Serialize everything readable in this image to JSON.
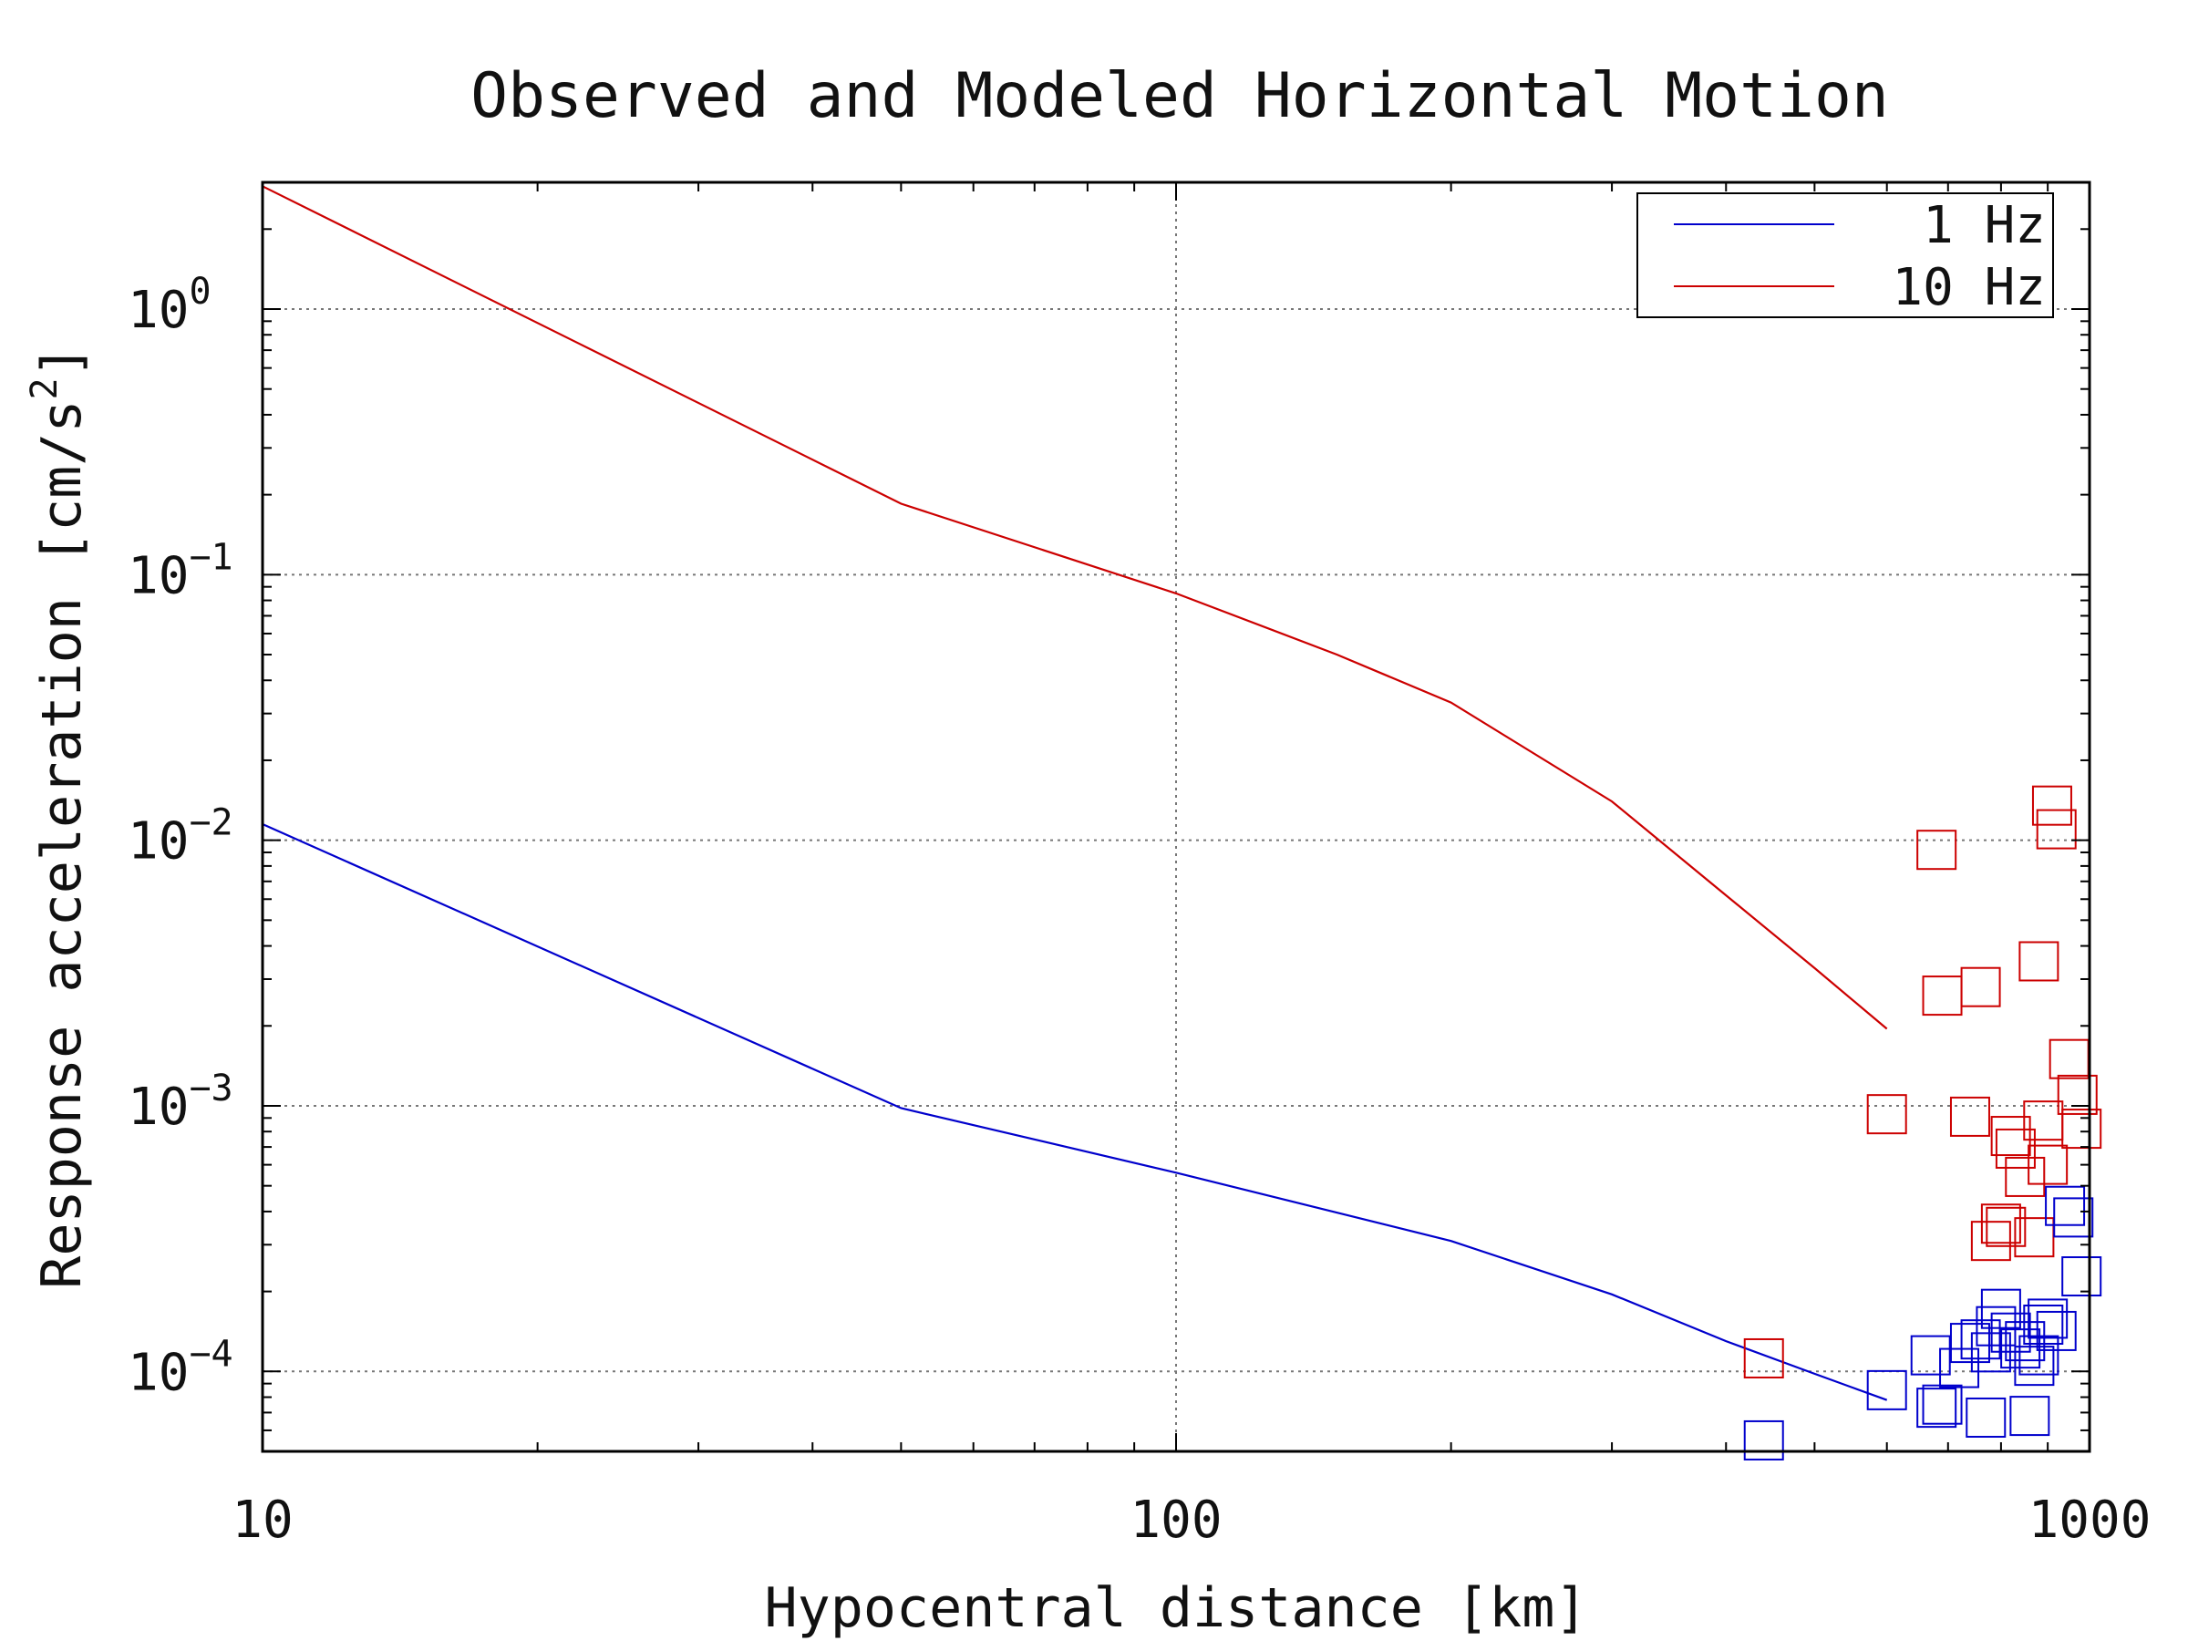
{
  "chart_data": {
    "type": "line",
    "title": "Observed and Modeled Horizontal Motion",
    "xlabel": "Hypocentral distance [km]",
    "ylabel": "Response acceleration [cm/s²]",
    "ylabel_parts": {
      "main": "Response acceleration [cm/s",
      "sup": "2",
      "close": "]"
    },
    "x_scale": "log",
    "y_scale": "log",
    "xlim": [
      10,
      1000
    ],
    "ylim": [
      5e-05,
      3
    ],
    "x_ticks": [
      {
        "value": 10,
        "label": "10"
      },
      {
        "value": 100,
        "label": "100"
      },
      {
        "value": 1000,
        "label": "1000"
      }
    ],
    "y_ticks": [
      {
        "value": 1,
        "base": "10",
        "exp": "0"
      },
      {
        "value": 0.1,
        "base": "10",
        "exp": "−1"
      },
      {
        "value": 0.01,
        "base": "10",
        "exp": "−2"
      },
      {
        "value": 0.001,
        "base": "10",
        "exp": "−3"
      },
      {
        "value": 0.0001,
        "base": "10",
        "exp": "−4"
      }
    ],
    "grid": true,
    "legend": {
      "position": "top-right"
    },
    "series": [
      {
        "name": "1 Hz",
        "color": "#0000cc",
        "kind": "line",
        "x": [
          10,
          50,
          100,
          200,
          300,
          400,
          500,
          600
        ],
        "y": [
          0.0115,
          0.00098,
          0.00056,
          0.00031,
          0.000195,
          0.00013,
          9.8e-05,
          7.8e-05
        ]
      },
      {
        "name": "10 Hz",
        "color": "#cc0000",
        "kind": "line",
        "x": [
          10,
          50,
          100,
          150,
          200,
          300,
          400,
          500,
          600
        ],
        "y": [
          2.9,
          0.185,
          0.085,
          0.05,
          0.033,
          0.014,
          0.0062,
          0.0033,
          0.00195
        ]
      },
      {
        "color": "#cc0000",
        "kind": "markers",
        "marker": "square",
        "x": [
          440,
          600,
          680,
          690,
          740,
          760,
          780,
          800,
          810,
          820,
          830,
          850,
          870,
          880,
          890,
          900,
          910,
          920,
          950,
          970,
          980
        ],
        "y": [
          0.000112,
          0.00093,
          0.0092,
          0.0026,
          0.00091,
          0.0028,
          0.00031,
          0.00036,
          0.00035,
          0.00077,
          0.00069,
          0.00054,
          0.00032,
          0.0035,
          0.00088,
          0.0006,
          0.0135,
          0.011,
          0.0015,
          0.0011,
          0.00082
        ]
      },
      {
        "color": "#0000cc",
        "kind": "markers",
        "marker": "square",
        "x": [
          440,
          600,
          670,
          680,
          690,
          720,
          740,
          760,
          770,
          780,
          790,
          800,
          820,
          840,
          850,
          860,
          870,
          880,
          890,
          900,
          920,
          940,
          960,
          980
        ],
        "y": [
          5.5e-05,
          8.5e-05,
          0.000115,
          7.3e-05,
          7.5e-05,
          0.000103,
          0.000128,
          0.000132,
          6.7e-05,
          0.000118,
          0.000148,
          0.000172,
          0.00014,
          0.000122,
          0.00013,
          6.8e-05,
          0.000105,
          0.000115,
          0.00015,
          0.000158,
          0.000142,
          0.00042,
          0.00038,
          0.000228
        ]
      }
    ]
  }
}
